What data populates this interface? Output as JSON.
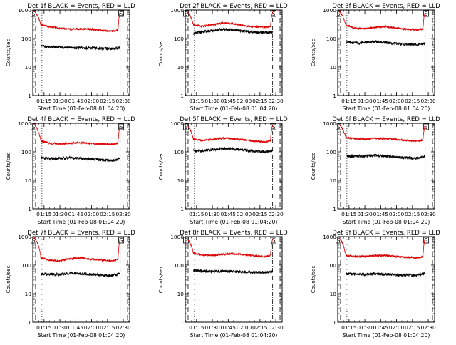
{
  "figure": {
    "background": "#ffffff",
    "event_color": "#000000",
    "lld_color": "#dd0000"
  },
  "chart_data": [
    {
      "type": "line",
      "title": "Det 1f BLACK = Events, RED = LLD",
      "xlabel": "Start Time (01-Feb-08 01:04:20)",
      "ylabel": "Counts/sec",
      "yscale": "log",
      "ylim": [
        1,
        1000
      ],
      "xlim": [
        "01:04:20",
        "02:36:00"
      ],
      "x_ticks": [
        "01:15",
        "01:30",
        "01:45",
        "02:00",
        "02:15",
        "02:30"
      ],
      "y_ticks": [
        "1",
        "10",
        "100",
        "1000"
      ],
      "markers": [
        {
          "label": "S",
          "time": "01:05"
        },
        {
          "label": "S",
          "time": "02:28"
        }
      ],
      "vlines": {
        "dashed": [
          "01:07",
          "02:34"
        ],
        "dotted": [
          "01:13"
        ],
        "dashdot": [
          "02:27"
        ]
      },
      "series": [
        {
          "name": "LLD",
          "x": [
            "01:06",
            "01:12",
            "01:20",
            "01:30",
            "01:40",
            "01:50",
            "02:00",
            "02:10",
            "02:20",
            "02:25",
            "02:27"
          ],
          "values": [
            900,
            300,
            260,
            230,
            210,
            220,
            210,
            190,
            180,
            200,
            900
          ]
        },
        {
          "name": "Events",
          "x": [
            "01:12",
            "01:20",
            "01:30",
            "01:40",
            "01:50",
            "02:00",
            "02:10",
            "02:20",
            "02:27"
          ],
          "values": [
            55,
            50,
            50,
            48,
            47,
            46,
            45,
            44,
            48
          ]
        }
      ]
    },
    {
      "type": "line",
      "title": "Det 2f BLACK = Events, RED = LLD",
      "xlabel": "Start Time (01-Feb-08 01:04:20)",
      "ylabel": "Counts/sec",
      "yscale": "log",
      "ylim": [
        1,
        1000
      ],
      "xlim": [
        "01:04:20",
        "02:36:00"
      ],
      "x_ticks": [
        "01:15",
        "01:30",
        "01:45",
        "02:00",
        "02:15",
        "02:30"
      ],
      "y_ticks": [
        "1",
        "10",
        "100",
        "1000"
      ],
      "markers": [
        {
          "label": "S",
          "time": "01:05"
        },
        {
          "label": "S",
          "time": "02:28"
        }
      ],
      "vlines": {
        "dashed": [
          "01:07",
          "02:34"
        ],
        "dotted": [
          "01:13"
        ],
        "dashdot": [
          "02:27"
        ]
      },
      "series": [
        {
          "name": "LLD",
          "x": [
            "01:06",
            "01:12",
            "01:20",
            "01:30",
            "01:40",
            "01:50",
            "02:00",
            "02:10",
            "02:20",
            "02:25",
            "02:27"
          ],
          "values": [
            900,
            300,
            270,
            300,
            350,
            330,
            280,
            260,
            250,
            270,
            900
          ]
        },
        {
          "name": "Events",
          "x": [
            "01:12",
            "01:20",
            "01:30",
            "01:40",
            "01:50",
            "02:00",
            "02:10",
            "02:20",
            "02:27"
          ],
          "values": [
            150,
            170,
            190,
            210,
            200,
            180,
            170,
            160,
            170
          ]
        }
      ]
    },
    {
      "type": "line",
      "title": "Det 3f BLACK = Events, RED = LLD",
      "xlabel": "Start Time (01-Feb-08 01:04:20)",
      "ylabel": "Counts/sec",
      "yscale": "log",
      "ylim": [
        1,
        1000
      ],
      "xlim": [
        "01:04:20",
        "02:36:00"
      ],
      "x_ticks": [
        "01:15",
        "01:30",
        "01:45",
        "02:00",
        "02:15",
        "02:30"
      ],
      "y_ticks": [
        "1",
        "10",
        "100",
        "1000"
      ],
      "markers": [
        {
          "label": "S",
          "time": "01:05"
        },
        {
          "label": "S",
          "time": "02:28"
        }
      ],
      "vlines": {
        "dashed": [
          "01:07",
          "02:34"
        ],
        "dotted": [
          "01:13"
        ],
        "dashdot": [
          "02:27"
        ]
      },
      "series": [
        {
          "name": "LLD",
          "x": [
            "01:06",
            "01:12",
            "01:20",
            "01:30",
            "01:40",
            "01:50",
            "02:00",
            "02:10",
            "02:20",
            "02:25",
            "02:27"
          ],
          "values": [
            900,
            300,
            230,
            220,
            250,
            260,
            230,
            210,
            200,
            220,
            900
          ]
        },
        {
          "name": "Events",
          "x": [
            "01:12",
            "01:20",
            "01:30",
            "01:40",
            "01:50",
            "02:00",
            "02:10",
            "02:20",
            "02:27"
          ],
          "values": [
            75,
            70,
            72,
            78,
            72,
            66,
            62,
            60,
            70
          ]
        }
      ]
    },
    {
      "type": "line",
      "title": "Det 4f BLACK = Events, RED = LLD",
      "xlabel": "Start Time (01-Feb-08 01:04:20)",
      "ylabel": "Counts/sec",
      "yscale": "log",
      "ylim": [
        1,
        1000
      ],
      "xlim": [
        "01:04:20",
        "02:36:00"
      ],
      "x_ticks": [
        "01:15",
        "01:30",
        "01:45",
        "02:00",
        "02:15",
        "02:30"
      ],
      "y_ticks": [
        "1",
        "10",
        "100",
        "1000"
      ],
      "markers": [
        {
          "label": "S",
          "time": "01:05"
        },
        {
          "label": "S",
          "time": "02:28"
        }
      ],
      "vlines": {
        "dashed": [
          "01:07",
          "02:34"
        ],
        "dotted": [
          "01:13"
        ],
        "dashdot": [
          "02:27"
        ]
      },
      "series": [
        {
          "name": "LLD",
          "x": [
            "01:06",
            "01:12",
            "01:20",
            "01:30",
            "01:40",
            "01:50",
            "02:00",
            "02:10",
            "02:20",
            "02:25",
            "02:27"
          ],
          "values": [
            900,
            240,
            200,
            190,
            200,
            210,
            195,
            190,
            185,
            200,
            900
          ]
        },
        {
          "name": "Events",
          "x": [
            "01:12",
            "01:20",
            "01:30",
            "01:40",
            "01:50",
            "02:00",
            "02:10",
            "02:20",
            "02:27"
          ],
          "values": [
            60,
            58,
            58,
            62,
            58,
            55,
            52,
            50,
            58
          ]
        }
      ]
    },
    {
      "type": "line",
      "title": "Det 5f BLACK = Events, RED = LLD",
      "xlabel": "Start Time (01-Feb-08 01:04:20)",
      "ylabel": "Counts/sec",
      "yscale": "log",
      "ylim": [
        1,
        1000
      ],
      "xlim": [
        "01:04:20",
        "02:36:00"
      ],
      "x_ticks": [
        "01:15",
        "01:30",
        "01:45",
        "02:00",
        "02:15",
        "02:30"
      ],
      "y_ticks": [
        "1",
        "10",
        "100",
        "1000"
      ],
      "markers": [
        {
          "label": "S",
          "time": "01:05"
        },
        {
          "label": "S",
          "time": "02:28"
        }
      ],
      "vlines": {
        "dashed": [
          "01:07",
          "02:34"
        ],
        "dotted": [
          "01:13"
        ],
        "dashdot": [
          "02:27"
        ]
      },
      "series": [
        {
          "name": "LLD",
          "x": [
            "01:06",
            "01:12",
            "01:20",
            "01:30",
            "01:40",
            "01:50",
            "02:00",
            "02:10",
            "02:20",
            "02:25",
            "02:27"
          ],
          "values": [
            900,
            280,
            250,
            270,
            300,
            290,
            260,
            240,
            220,
            250,
            900
          ]
        },
        {
          "name": "Events",
          "x": [
            "01:12",
            "01:20",
            "01:30",
            "01:40",
            "01:50",
            "02:00",
            "02:10",
            "02:20",
            "02:27"
          ],
          "values": [
            110,
            110,
            120,
            130,
            125,
            115,
            105,
            100,
            110
          ]
        }
      ]
    },
    {
      "type": "line",
      "title": "Det 6f BLACK = Events, RED = LLD",
      "xlabel": "Start Time (01-Feb-08 01:04:20)",
      "ylabel": "Counts/sec",
      "yscale": "log",
      "ylim": [
        1,
        1000
      ],
      "xlim": [
        "01:04:20",
        "02:36:00"
      ],
      "x_ticks": [
        "01:15",
        "01:30",
        "01:45",
        "02:00",
        "02:15",
        "02:30"
      ],
      "y_ticks": [
        "1",
        "10",
        "100",
        "1000"
      ],
      "markers": [
        {
          "label": "S",
          "time": "01:05"
        },
        {
          "label": "S",
          "time": "02:28"
        }
      ],
      "vlines": {
        "dashed": [
          "01:07",
          "02:34"
        ],
        "dotted": [
          "01:13"
        ],
        "dashdot": [
          "02:27"
        ]
      },
      "series": [
        {
          "name": "LLD",
          "x": [
            "01:06",
            "01:12",
            "01:20",
            "01:30",
            "01:40",
            "01:50",
            "02:00",
            "02:10",
            "02:20",
            "02:25",
            "02:27"
          ],
          "values": [
            900,
            320,
            290,
            280,
            300,
            290,
            270,
            250,
            240,
            260,
            900
          ]
        },
        {
          "name": "Events",
          "x": [
            "01:12",
            "01:20",
            "01:30",
            "01:40",
            "01:50",
            "02:00",
            "02:10",
            "02:20",
            "02:27"
          ],
          "values": [
            70,
            70,
            72,
            75,
            70,
            66,
            62,
            60,
            70
          ]
        }
      ]
    },
    {
      "type": "line",
      "title": "Det 7f BLACK = Events, RED = LLD",
      "xlabel": "Start Time (01-Feb-08 01:04:20)",
      "ylabel": "Counts/sec",
      "yscale": "log",
      "ylim": [
        1,
        1000
      ],
      "xlim": [
        "01:04:20",
        "02:36:00"
      ],
      "x_ticks": [
        "01:15",
        "01:30",
        "01:45",
        "02:00",
        "02:15",
        "02:30"
      ],
      "y_ticks": [
        "1",
        "10",
        "100",
        "1000"
      ],
      "markers": [
        {
          "label": "S",
          "time": "01:05"
        },
        {
          "label": "S",
          "time": "02:28"
        }
      ],
      "vlines": {
        "dashed": [
          "01:07",
          "02:34"
        ],
        "dotted": [
          "01:13"
        ],
        "dashdot": [
          "02:27"
        ]
      },
      "series": [
        {
          "name": "LLD",
          "x": [
            "01:06",
            "01:12",
            "01:20",
            "01:30",
            "01:40",
            "01:50",
            "02:00",
            "02:10",
            "02:20",
            "02:25",
            "02:27"
          ],
          "values": [
            900,
            180,
            150,
            140,
            170,
            180,
            160,
            150,
            140,
            160,
            900
          ]
        },
        {
          "name": "Events",
          "x": [
            "01:12",
            "01:20",
            "01:30",
            "01:40",
            "01:50",
            "02:00",
            "02:10",
            "02:20",
            "02:27"
          ],
          "values": [
            50,
            48,
            48,
            52,
            50,
            47,
            45,
            43,
            50
          ]
        }
      ]
    },
    {
      "type": "line",
      "title": "Det 8f BLACK = Events, RED = LLD",
      "xlabel": "Start Time (01-Feb-08 01:04:20)",
      "ylabel": "Counts/sec",
      "yscale": "log",
      "ylim": [
        1,
        1000
      ],
      "xlim": [
        "01:04:20",
        "02:36:00"
      ],
      "x_ticks": [
        "01:15",
        "01:30",
        "01:45",
        "02:00",
        "02:15",
        "02:30"
      ],
      "y_ticks": [
        "1",
        "10",
        "100",
        "1000"
      ],
      "markers": [
        {
          "label": "S",
          "time": "01:05"
        },
        {
          "label": "S",
          "time": "02:28"
        }
      ],
      "vlines": {
        "dashed": [
          "01:07",
          "02:34"
        ],
        "dotted": [
          "01:13"
        ],
        "dashdot": [
          "02:27"
        ]
      },
      "series": [
        {
          "name": "LLD",
          "x": [
            "01:06",
            "01:12",
            "01:20",
            "01:30",
            "01:40",
            "01:50",
            "02:00",
            "02:10",
            "02:20",
            "02:25",
            "02:27"
          ],
          "values": [
            900,
            260,
            230,
            220,
            240,
            250,
            230,
            210,
            200,
            220,
            900
          ]
        },
        {
          "name": "Events",
          "x": [
            "01:12",
            "01:20",
            "01:30",
            "01:40",
            "01:50",
            "02:00",
            "02:10",
            "02:20",
            "02:27"
          ],
          "values": [
            65,
            62,
            60,
            62,
            60,
            58,
            56,
            55,
            62
          ]
        }
      ]
    },
    {
      "type": "line",
      "title": "Det 9f BLACK = Events, RED = LLD",
      "xlabel": "Start Time (01-Feb-08 01:04:20)",
      "ylabel": "Counts/sec",
      "yscale": "log",
      "ylim": [
        1,
        1000
      ],
      "xlim": [
        "01:04:20",
        "02:36:00"
      ],
      "x_ticks": [
        "01:15",
        "01:30",
        "01:45",
        "02:00",
        "02:15",
        "02:30"
      ],
      "y_ticks": [
        "1",
        "10",
        "100",
        "1000"
      ],
      "markers": [
        {
          "label": "S",
          "time": "01:05"
        },
        {
          "label": "S",
          "time": "02:28"
        }
      ],
      "vlines": {
        "dashed": [
          "01:07",
          "02:34"
        ],
        "dotted": [
          "01:13"
        ],
        "dashdot": [
          "02:27"
        ]
      },
      "series": [
        {
          "name": "LLD",
          "x": [
            "01:06",
            "01:12",
            "01:20",
            "01:30",
            "01:40",
            "01:50",
            "02:00",
            "02:10",
            "02:20",
            "02:25",
            "02:27"
          ],
          "values": [
            900,
            220,
            200,
            200,
            220,
            215,
            200,
            190,
            180,
            200,
            900
          ]
        },
        {
          "name": "Events",
          "x": [
            "01:12",
            "01:20",
            "01:30",
            "01:40",
            "01:50",
            "02:00",
            "02:10",
            "02:20",
            "02:27"
          ],
          "values": [
            50,
            48,
            48,
            50,
            48,
            46,
            45,
            44,
            52
          ]
        }
      ]
    }
  ]
}
